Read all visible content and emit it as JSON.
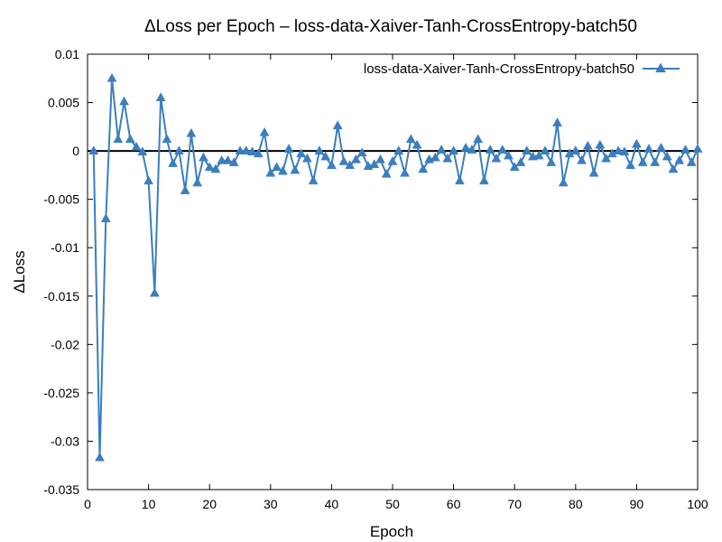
{
  "chart_data": {
    "type": "line",
    "title": "ΔLoss per Epoch – loss-data-Xaiver-Tanh-CrossEntropy-batch50",
    "xlabel": "Epoch",
    "ylabel": "ΔLoss",
    "xlim": [
      0,
      100
    ],
    "ylim": [
      -0.035,
      0.01
    ],
    "xticks": [
      0,
      10,
      20,
      30,
      40,
      50,
      60,
      70,
      80,
      90,
      100
    ],
    "yticks": [
      0.01,
      0.005,
      0,
      -0.005,
      -0.01,
      -0.015,
      -0.02,
      -0.025,
      -0.03,
      -0.035
    ],
    "xtick_labels": [
      "0",
      "10",
      "20",
      "30",
      "40",
      "50",
      "60",
      "70",
      "80",
      "90",
      "100"
    ],
    "ytick_labels": [
      "0.01",
      "0.005",
      "0",
      "-0.005",
      "-0.01",
      "-0.015",
      "-0.02",
      "-0.025",
      "-0.03",
      "-0.035"
    ],
    "grid": false,
    "zero_line": true,
    "legend_position": "top-right",
    "series": [
      {
        "name": "loss-data-Xaiver-Tanh-CrossEntropy-batch50",
        "color": "#3a7ebf",
        "marker": "triangle",
        "x": [
          1,
          2,
          3,
          4,
          5,
          6,
          7,
          8,
          9,
          10,
          11,
          12,
          13,
          14,
          15,
          16,
          17,
          18,
          19,
          20,
          21,
          22,
          23,
          24,
          25,
          26,
          27,
          28,
          29,
          30,
          31,
          32,
          33,
          34,
          35,
          36,
          37,
          38,
          39,
          40,
          41,
          42,
          43,
          44,
          45,
          46,
          47,
          48,
          49,
          50,
          51,
          52,
          53,
          54,
          55,
          56,
          57,
          58,
          59,
          60,
          61,
          62,
          63,
          64,
          65,
          66,
          67,
          68,
          69,
          70,
          71,
          72,
          73,
          74,
          75,
          76,
          77,
          78,
          79,
          80,
          81,
          82,
          83,
          84,
          85,
          86,
          87,
          88,
          89,
          90,
          91,
          92,
          93,
          94,
          95,
          96,
          97,
          98,
          99,
          100
        ],
        "y": [
          0.0,
          -0.0317,
          -0.007,
          0.0075,
          0.0012,
          0.0051,
          0.0012,
          0.0004,
          -0.0001,
          -0.0031,
          -0.0147,
          0.0055,
          0.0012,
          -0.0013,
          0.0,
          -0.0041,
          0.0018,
          -0.0033,
          -0.0007,
          -0.0017,
          -0.0019,
          -0.001,
          -0.001,
          -0.0012,
          0.0,
          0.0,
          -0.0001,
          -0.0003,
          0.0019,
          -0.0023,
          -0.0017,
          -0.0021,
          0.0002,
          -0.002,
          -0.0003,
          -0.0008,
          -0.0031,
          0.0,
          -0.0006,
          -0.0015,
          0.0026,
          -0.0011,
          -0.0015,
          -0.0009,
          -0.0002,
          -0.0016,
          -0.0014,
          -0.0009,
          -0.0024,
          -0.0011,
          0.0,
          -0.0023,
          0.0012,
          0.0006,
          -0.0019,
          -0.0009,
          -0.0007,
          0.0001,
          -0.0008,
          0.0,
          -0.0031,
          0.0003,
          0.0001,
          0.0012,
          -0.0031,
          0.0001,
          -0.0008,
          0.0001,
          -0.0005,
          -0.0017,
          -0.0012,
          0.0,
          -0.0006,
          -0.0005,
          0.0,
          -0.0012,
          0.0029,
          -0.0033,
          -0.0003,
          0.0,
          -0.001,
          0.0005,
          -0.0023,
          0.0006,
          -0.0008,
          -0.0003,
          0.0,
          -0.0001,
          -0.0015,
          0.0007,
          -0.0012,
          0.0002,
          -0.0012,
          0.0003,
          -0.0006,
          -0.0019,
          -0.001,
          0.0001,
          -0.0012,
          0.0002
        ]
      }
    ]
  }
}
